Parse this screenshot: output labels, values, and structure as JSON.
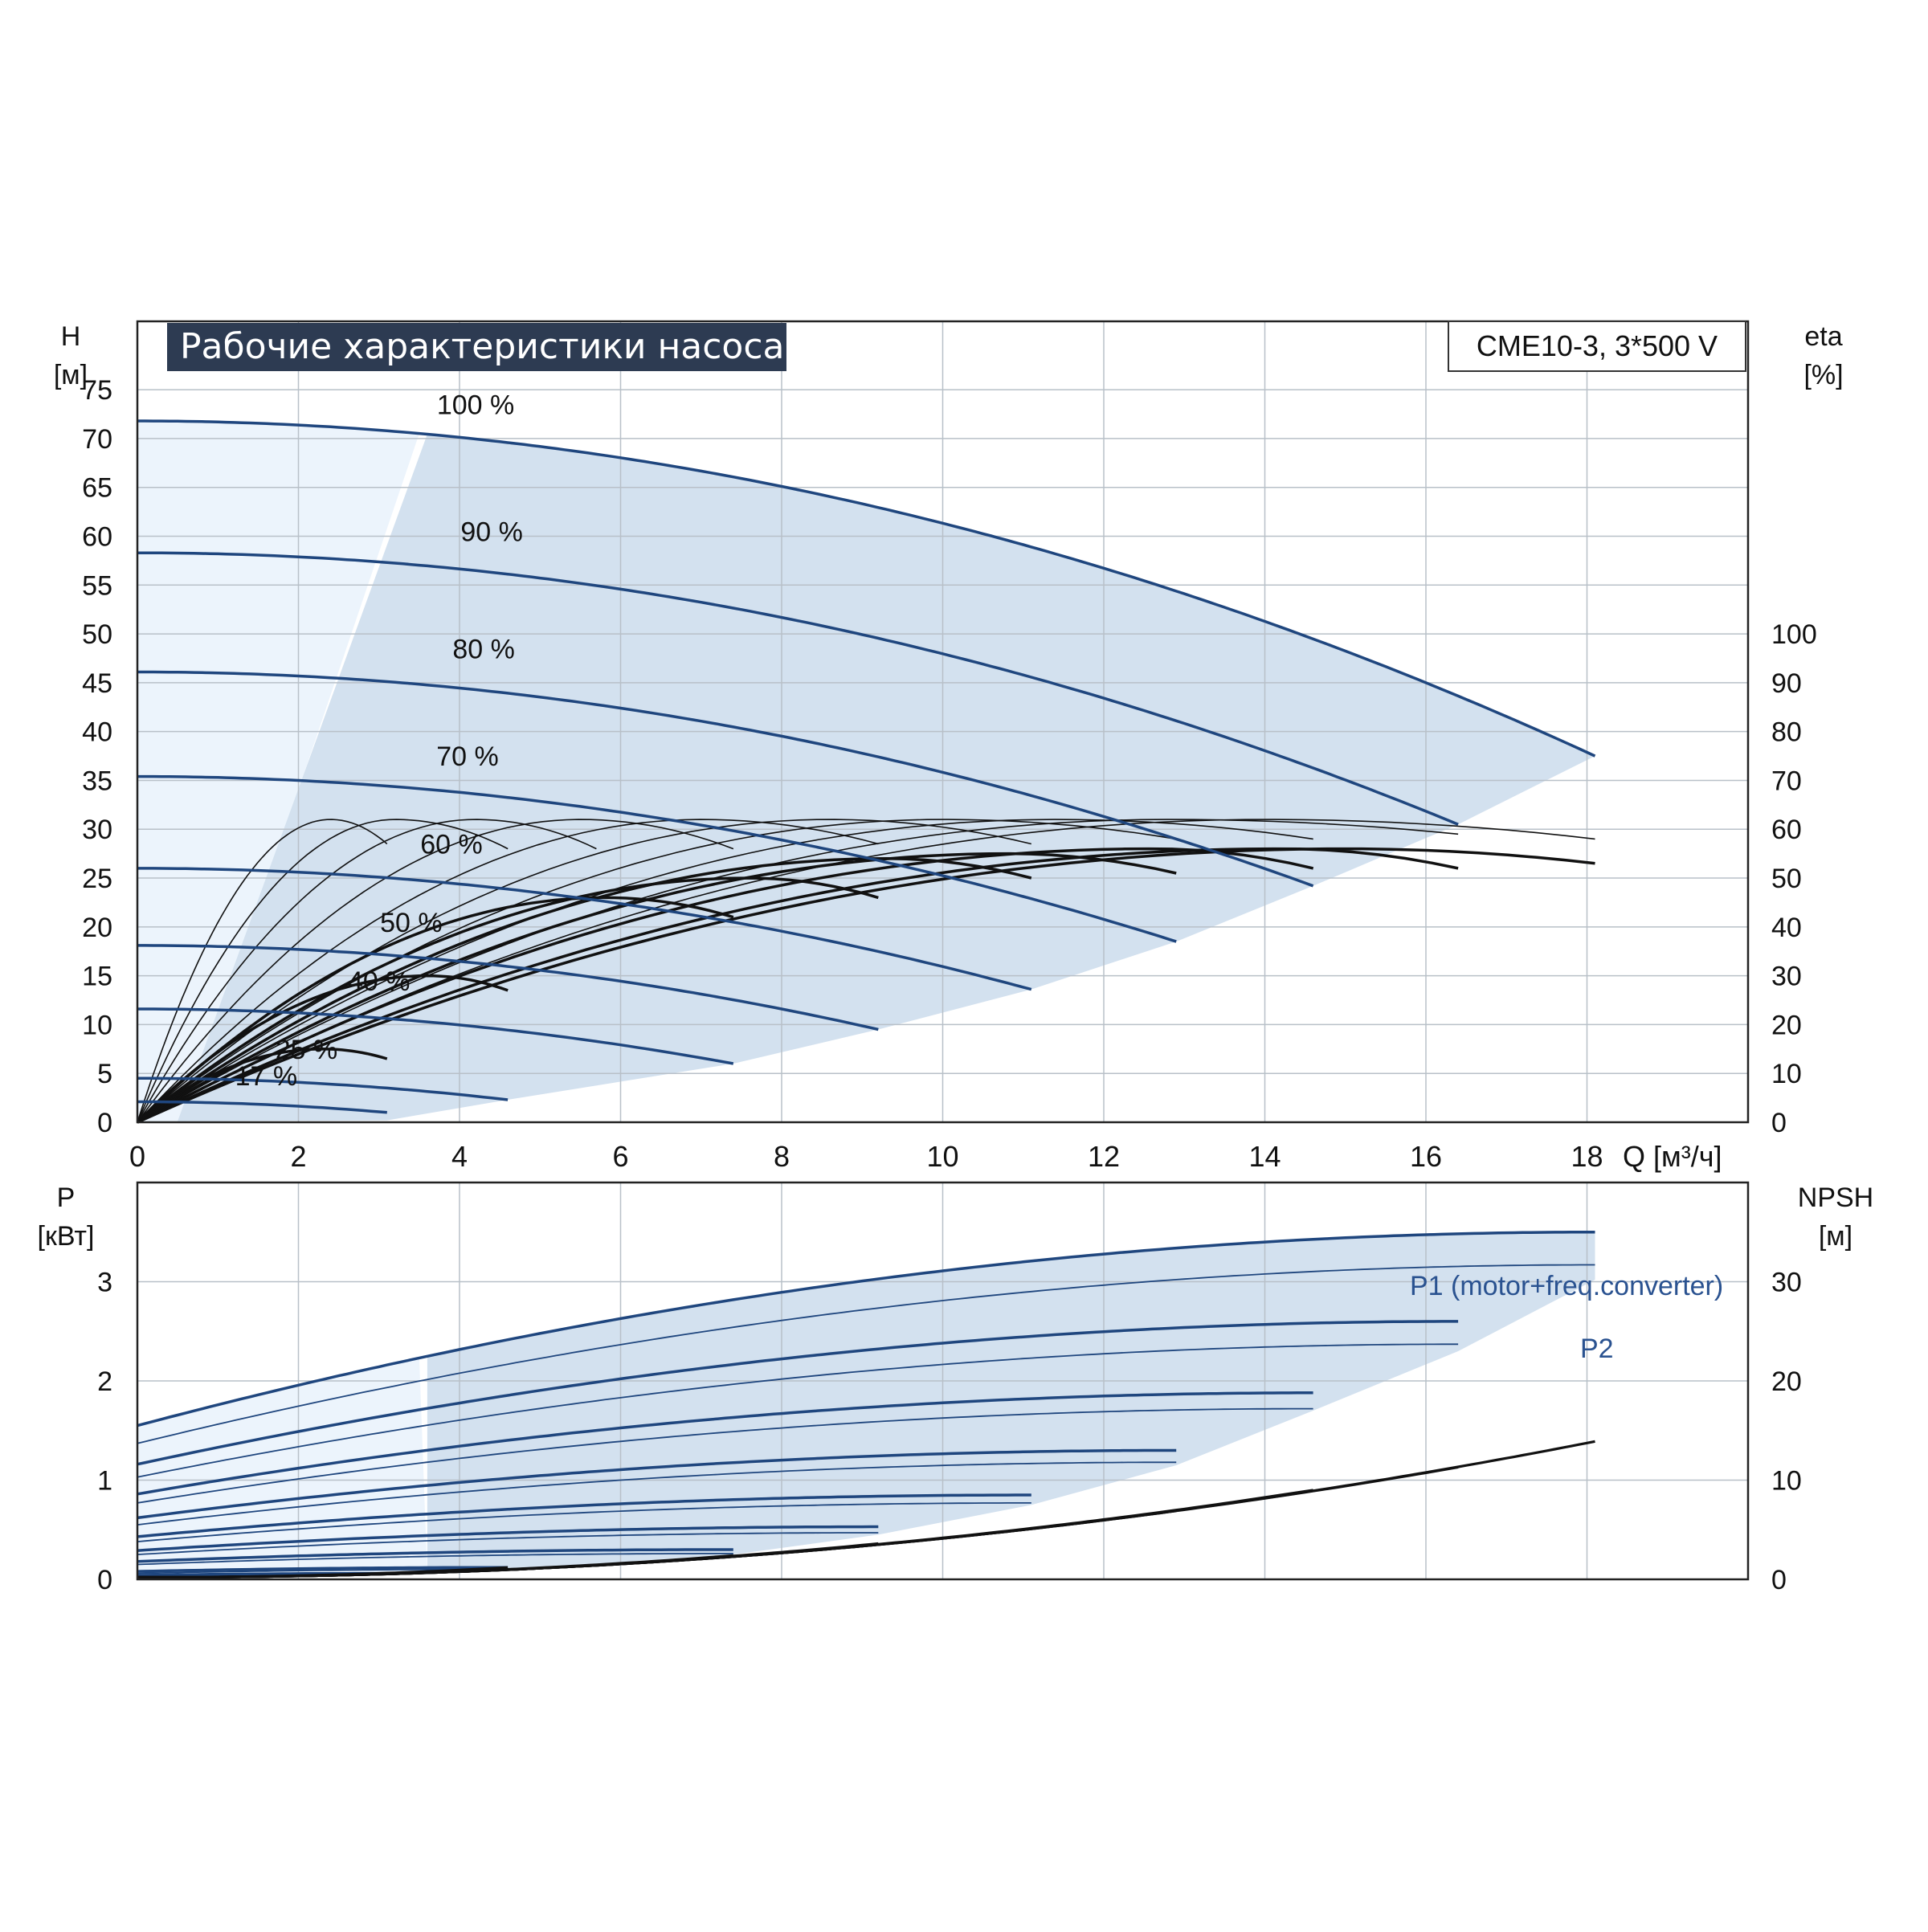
{
  "chart_data": [
    {
      "type": "line",
      "title": "Рабочие характеристики насоса",
      "model": "CME10-3, 3*500 V",
      "left_axis": {
        "label_top": "H",
        "label_unit": "[м]",
        "ticks": [
          0,
          5,
          10,
          15,
          20,
          25,
          30,
          35,
          40,
          45,
          50,
          55,
          60,
          65,
          70,
          75
        ],
        "ylim": [
          0,
          82
        ]
      },
      "right_axis": {
        "label_top": "eta",
        "label_unit": "[%]",
        "ticks": [
          0,
          10,
          20,
          30,
          40,
          50,
          60,
          70,
          80,
          90,
          100
        ],
        "ylim": [
          0,
          164
        ]
      },
      "x_axis": {
        "ticks": [
          0,
          2,
          4,
          6,
          8,
          10,
          12,
          14,
          16,
          18
        ],
        "unit_label": "Q [м³/ч]",
        "xlim": [
          0,
          20
        ]
      },
      "grid": true,
      "speed_labels": [
        {
          "text": "100 %",
          "q": 4.2,
          "h": 72.5
        },
        {
          "text": "90 %",
          "q": 4.4,
          "h": 59.5
        },
        {
          "text": "80 %",
          "q": 4.3,
          "h": 47.5
        },
        {
          "text": "70 %",
          "q": 4.1,
          "h": 36.5
        },
        {
          "text": "60 %",
          "q": 3.9,
          "h": 27.5
        },
        {
          "text": "50 %",
          "q": 3.4,
          "h": 19.5
        },
        {
          "text": "40 %",
          "q": 3.0,
          "h": 13.5
        },
        {
          "text": "25 %",
          "q": 2.1,
          "h": 6.5
        },
        {
          "text": "17 %",
          "q": 1.6,
          "h": 3.8
        }
      ],
      "head_curves": [
        {
          "speed": "100 %",
          "h0": 71.8,
          "qmax": 18.1,
          "hend": 37.5
        },
        {
          "speed": "90 %",
          "h0": 58.3,
          "qmax": 16.4,
          "hend": 30.5
        },
        {
          "speed": "80 %",
          "h0": 46.1,
          "qmax": 14.6,
          "hend": 24.2
        },
        {
          "speed": "70 %",
          "h0": 35.4,
          "qmax": 12.9,
          "hend": 18.5
        },
        {
          "speed": "60 %",
          "h0": 26.0,
          "qmax": 11.1,
          "hend": 13.6
        },
        {
          "speed": "50 %",
          "h0": 18.1,
          "qmax": 9.2,
          "hend": 9.5
        },
        {
          "speed": "40 %",
          "h0": 11.6,
          "qmax": 7.4,
          "hend": 6.0
        },
        {
          "speed": "25 %",
          "h0": 4.5,
          "qmax": 4.6,
          "hend": 2.3
        },
        {
          "speed": "17 %",
          "h0": 2.1,
          "qmax": 3.1,
          "hend": 1.0
        }
      ],
      "efficiency_curves": [
        {
          "qmax": 18.1,
          "eta_peak": 56,
          "q_peak": 15.0,
          "eta_end": 53
        },
        {
          "qmax": 16.4,
          "eta_peak": 56,
          "q_peak": 14.2,
          "eta_end": 52
        },
        {
          "qmax": 14.6,
          "eta_peak": 56,
          "q_peak": 12.6,
          "eta_end": 52
        },
        {
          "qmax": 12.9,
          "eta_peak": 55,
          "q_peak": 10.8,
          "eta_end": 51
        },
        {
          "qmax": 11.1,
          "eta_peak": 54,
          "q_peak": 9.3,
          "eta_end": 50
        },
        {
          "qmax": 9.2,
          "eta_peak": 50,
          "q_peak": 7.6,
          "eta_end": 46
        },
        {
          "qmax": 7.4,
          "eta_peak": 46,
          "q_peak": 5.8,
          "eta_end": 42
        },
        {
          "qmax": 4.6,
          "eta_peak": 30,
          "q_peak": 3.6,
          "eta_end": 27
        },
        {
          "qmax": 3.1,
          "eta_peak": 15,
          "q_peak": 2.3,
          "eta_end": 13
        },
        {
          "qmax": 18.1,
          "eta_peak": 62,
          "q_peak": 14.0,
          "eta_end": 58
        },
        {
          "qmax": 16.4,
          "eta_peak": 62,
          "q_peak": 12.8,
          "eta_end": 59
        },
        {
          "qmax": 14.6,
          "eta_peak": 62,
          "q_peak": 11.4,
          "eta_end": 58
        },
        {
          "qmax": 12.9,
          "eta_peak": 62,
          "q_peak": 10.0,
          "eta_end": 58
        },
        {
          "qmax": 11.1,
          "eta_peak": 62,
          "q_peak": 8.6,
          "eta_end": 57
        },
        {
          "qmax": 9.2,
          "eta_peak": 62,
          "q_peak": 7.0,
          "eta_end": 57
        },
        {
          "qmax": 7.4,
          "eta_peak": 62,
          "q_peak": 5.5,
          "eta_end": 56
        },
        {
          "qmax": 5.7,
          "eta_peak": 62,
          "q_peak": 4.2,
          "eta_end": 56
        },
        {
          "qmax": 4.6,
          "eta_peak": 62,
          "q_peak": 3.2,
          "eta_end": 56
        },
        {
          "qmax": 3.1,
          "eta_peak": 62,
          "q_peak": 2.4,
          "eta_end": 57
        }
      ]
    },
    {
      "type": "line",
      "left_axis": {
        "label_top": "P",
        "label_unit": "[кВт]",
        "ticks": [
          0,
          1,
          2,
          3
        ],
        "ylim": [
          0,
          4.0
        ]
      },
      "right_axis": {
        "label_top": "NPSH",
        "label_unit": "[м]",
        "ticks": [
          0,
          10,
          20,
          30
        ],
        "ylim": [
          0,
          40
        ]
      },
      "x_axis": {
        "xlim": [
          0,
          20
        ]
      },
      "grid": true,
      "legend_labels": [
        "P1 (motor+freq.converter)",
        "P2"
      ],
      "power_curves": [
        {
          "p1_start": 1.55,
          "p1_end": 3.5,
          "p2_start": 1.37,
          "p2_end": 3.17,
          "qmax": 18.1
        },
        {
          "p1_start": 1.16,
          "p1_end": 2.6,
          "p2_start": 1.03,
          "p2_end": 2.37,
          "qmax": 16.4
        },
        {
          "p1_start": 0.86,
          "p1_end": 1.88,
          "p2_start": 0.77,
          "p2_end": 1.72,
          "qmax": 14.6
        },
        {
          "p1_start": 0.62,
          "p1_end": 1.3,
          "p2_start": 0.55,
          "p2_end": 1.18,
          "qmax": 12.9
        },
        {
          "p1_start": 0.43,
          "p1_end": 0.85,
          "p2_start": 0.38,
          "p2_end": 0.77,
          "qmax": 11.1
        },
        {
          "p1_start": 0.29,
          "p1_end": 0.53,
          "p2_start": 0.25,
          "p2_end": 0.47,
          "qmax": 9.2
        },
        {
          "p1_start": 0.18,
          "p1_end": 0.3,
          "p2_start": 0.15,
          "p2_end": 0.26,
          "qmax": 7.4
        },
        {
          "p1_start": 0.08,
          "p1_end": 0.12,
          "p2_start": 0.06,
          "p2_end": 0.1,
          "qmax": 4.6
        },
        {
          "p1_start": 0.04,
          "p1_end": 0.06,
          "p2_start": 0.03,
          "p2_end": 0.05,
          "qmax": 3.1
        }
      ],
      "npsh_curves": [
        {
          "qmax": 18.1,
          "npsh_end": 13.9
        },
        {
          "qmax": 16.4,
          "npsh_end": 11.3
        },
        {
          "qmax": 14.6,
          "npsh_end": 9.0
        },
        {
          "qmax": 12.9,
          "npsh_end": 6.9
        },
        {
          "qmax": 11.1,
          "npsh_end": 5.1
        },
        {
          "qmax": 9.2,
          "npsh_end": 3.6
        },
        {
          "qmax": 7.4,
          "npsh_end": 2.4
        },
        {
          "qmax": 4.6,
          "npsh_end": 1.2
        },
        {
          "qmax": 3.1,
          "npsh_end": 0.6
        }
      ]
    }
  ],
  "colors": {
    "curve_blue": "#1f467e",
    "curve_black": "#111111",
    "region_fill": "#d3e1ef",
    "region_light": "#ecf4fc",
    "title_bg": "#2d3b52",
    "grid": "#b8c0c8",
    "label_blue": "#2a5290"
  }
}
